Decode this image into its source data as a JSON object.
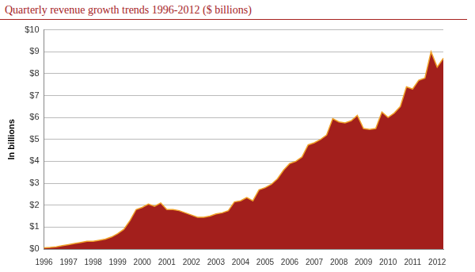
{
  "chart_data": {
    "type": "area",
    "title": "Quarterly revenue growth trends 1996-2012 ($ billions)",
    "y_label": "In billions",
    "categories": [
      "1996",
      null,
      null,
      null,
      "1997",
      null,
      null,
      null,
      "1998",
      null,
      null,
      null,
      "1999",
      null,
      null,
      null,
      "2000",
      null,
      null,
      null,
      "2001",
      null,
      null,
      null,
      "2002",
      null,
      null,
      null,
      "2003",
      null,
      null,
      null,
      "2004",
      null,
      null,
      null,
      "2005",
      null,
      null,
      null,
      "2006",
      null,
      null,
      null,
      "2007",
      null,
      null,
      null,
      "2008",
      null,
      null,
      null,
      "2009",
      null,
      null,
      null,
      "2010",
      null,
      null,
      null,
      "2011",
      null,
      null,
      null,
      "2012",
      null
    ],
    "values": [
      0.05,
      0.07,
      0.1,
      0.15,
      0.2,
      0.25,
      0.3,
      0.35,
      0.35,
      0.4,
      0.45,
      0.55,
      0.7,
      0.9,
      1.3,
      1.8,
      1.9,
      2.05,
      1.95,
      2.1,
      1.8,
      1.8,
      1.75,
      1.65,
      1.55,
      1.45,
      1.45,
      1.5,
      1.6,
      1.65,
      1.75,
      2.15,
      2.2,
      2.35,
      2.2,
      2.7,
      2.8,
      2.95,
      3.2,
      3.6,
      3.9,
      4.0,
      4.2,
      4.75,
      4.85,
      5.0,
      5.2,
      5.95,
      5.8,
      5.75,
      5.85,
      6.1,
      5.5,
      5.45,
      5.5,
      6.25,
      6.0,
      6.2,
      6.5,
      7.4,
      7.3,
      7.7,
      7.8,
      9.0,
      8.3,
      8.7
    ],
    "color": "#a31f1c",
    "ylim": [
      0,
      10
    ],
    "yticks": [
      {
        "value": 0,
        "label": "$0"
      },
      {
        "value": 1,
        "label": "$1"
      },
      {
        "value": 2,
        "label": "$2"
      },
      {
        "value": 3,
        "label": "$3"
      },
      {
        "value": 4,
        "label": "$4"
      },
      {
        "value": 5,
        "label": "$5"
      },
      {
        "value": 6,
        "label": "$6"
      },
      {
        "value": 7,
        "label": "$7"
      },
      {
        "value": 8,
        "label": "$8"
      },
      {
        "value": 9,
        "label": "$9"
      },
      {
        "value": 10,
        "label": "$10"
      }
    ],
    "grid": true
  }
}
